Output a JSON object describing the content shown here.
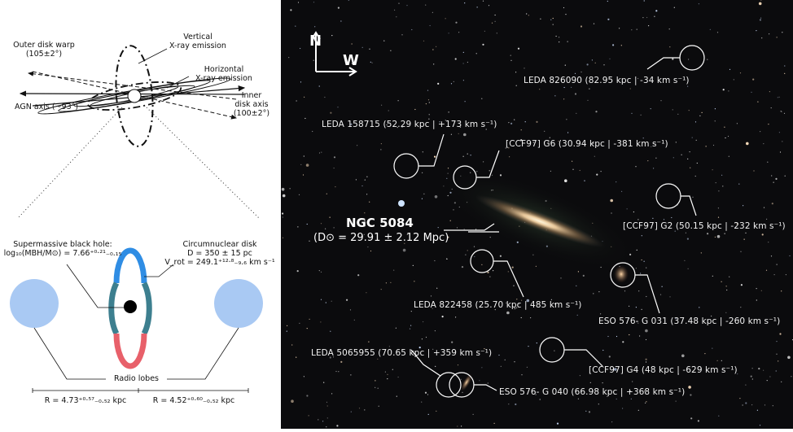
{
  "schematic": {
    "outer_warp": [
      "Outer disk warp",
      "(105±2°)"
    ],
    "vertical_xray": [
      "Vertical",
      "X-ray emission"
    ],
    "horizontal_xray": [
      "Horizontal",
      "X-ray emission"
    ],
    "agn_axis": "AGN axis (~93°)",
    "inner_disk": [
      "Inner",
      "disk axis",
      "(100±2°)"
    ],
    "smbh_title": "Supermassive black hole:",
    "smbh_formula": "log₁₀(MBH/M⊙) = 7.66⁺⁰·²¹₋₀.₁₅",
    "cnd_title": "Circumnuclear disk",
    "cnd_size": "D = 350 ± 15 pc",
    "cnd_vrot": "V_rot = 249.1⁺¹²·⁸₋₉.₆ km s⁻¹",
    "radio_lobes": "Radio lobes",
    "r_left": "R = 4.73⁺⁰·⁵⁷₋₀.₅₂ kpc",
    "r_right": "R = 4.52⁺⁰·⁶⁰₋₀.₅₂ kpc",
    "colors": {
      "lobe": "#a9c9f3",
      "ring_blue": "#2f8de4",
      "ring_teal": "#3d7f8f",
      "ring_red": "#e8606a"
    }
  },
  "sky": {
    "compass": {
      "north": "N",
      "west": "W"
    },
    "main": {
      "name": "NGC 5084",
      "distance": "(D⊙ = 29.91 ± 2.12 Mpc)"
    },
    "galaxies": [
      {
        "label": "LEDA 826090 (82.95 kpc | -34 km s⁻¹)"
      },
      {
        "label": "LEDA 158715 (52.29 kpc | +173 km s⁻¹)"
      },
      {
        "label": "[CCF97] G6 (30.94 kpc | -381 km s⁻¹)"
      },
      {
        "label": "[CCF97] G2 (50.15 kpc | -232 km s⁻¹)"
      },
      {
        "label": "LEDA 822458 (25.70 kpc | 485 km s⁻¹)"
      },
      {
        "label": "ESO 576- G 031 (37.48 kpc | -260 km s⁻¹)"
      },
      {
        "label": "LEDA 5065955  (70.65 kpc | +359 km s⁻¹)"
      },
      {
        "label": "[CCF97] G4 (48 kpc | -629 km s⁻¹)"
      },
      {
        "label": "ESO 576- G 040 (66.98 kpc | +368 km s⁻¹)"
      }
    ]
  }
}
